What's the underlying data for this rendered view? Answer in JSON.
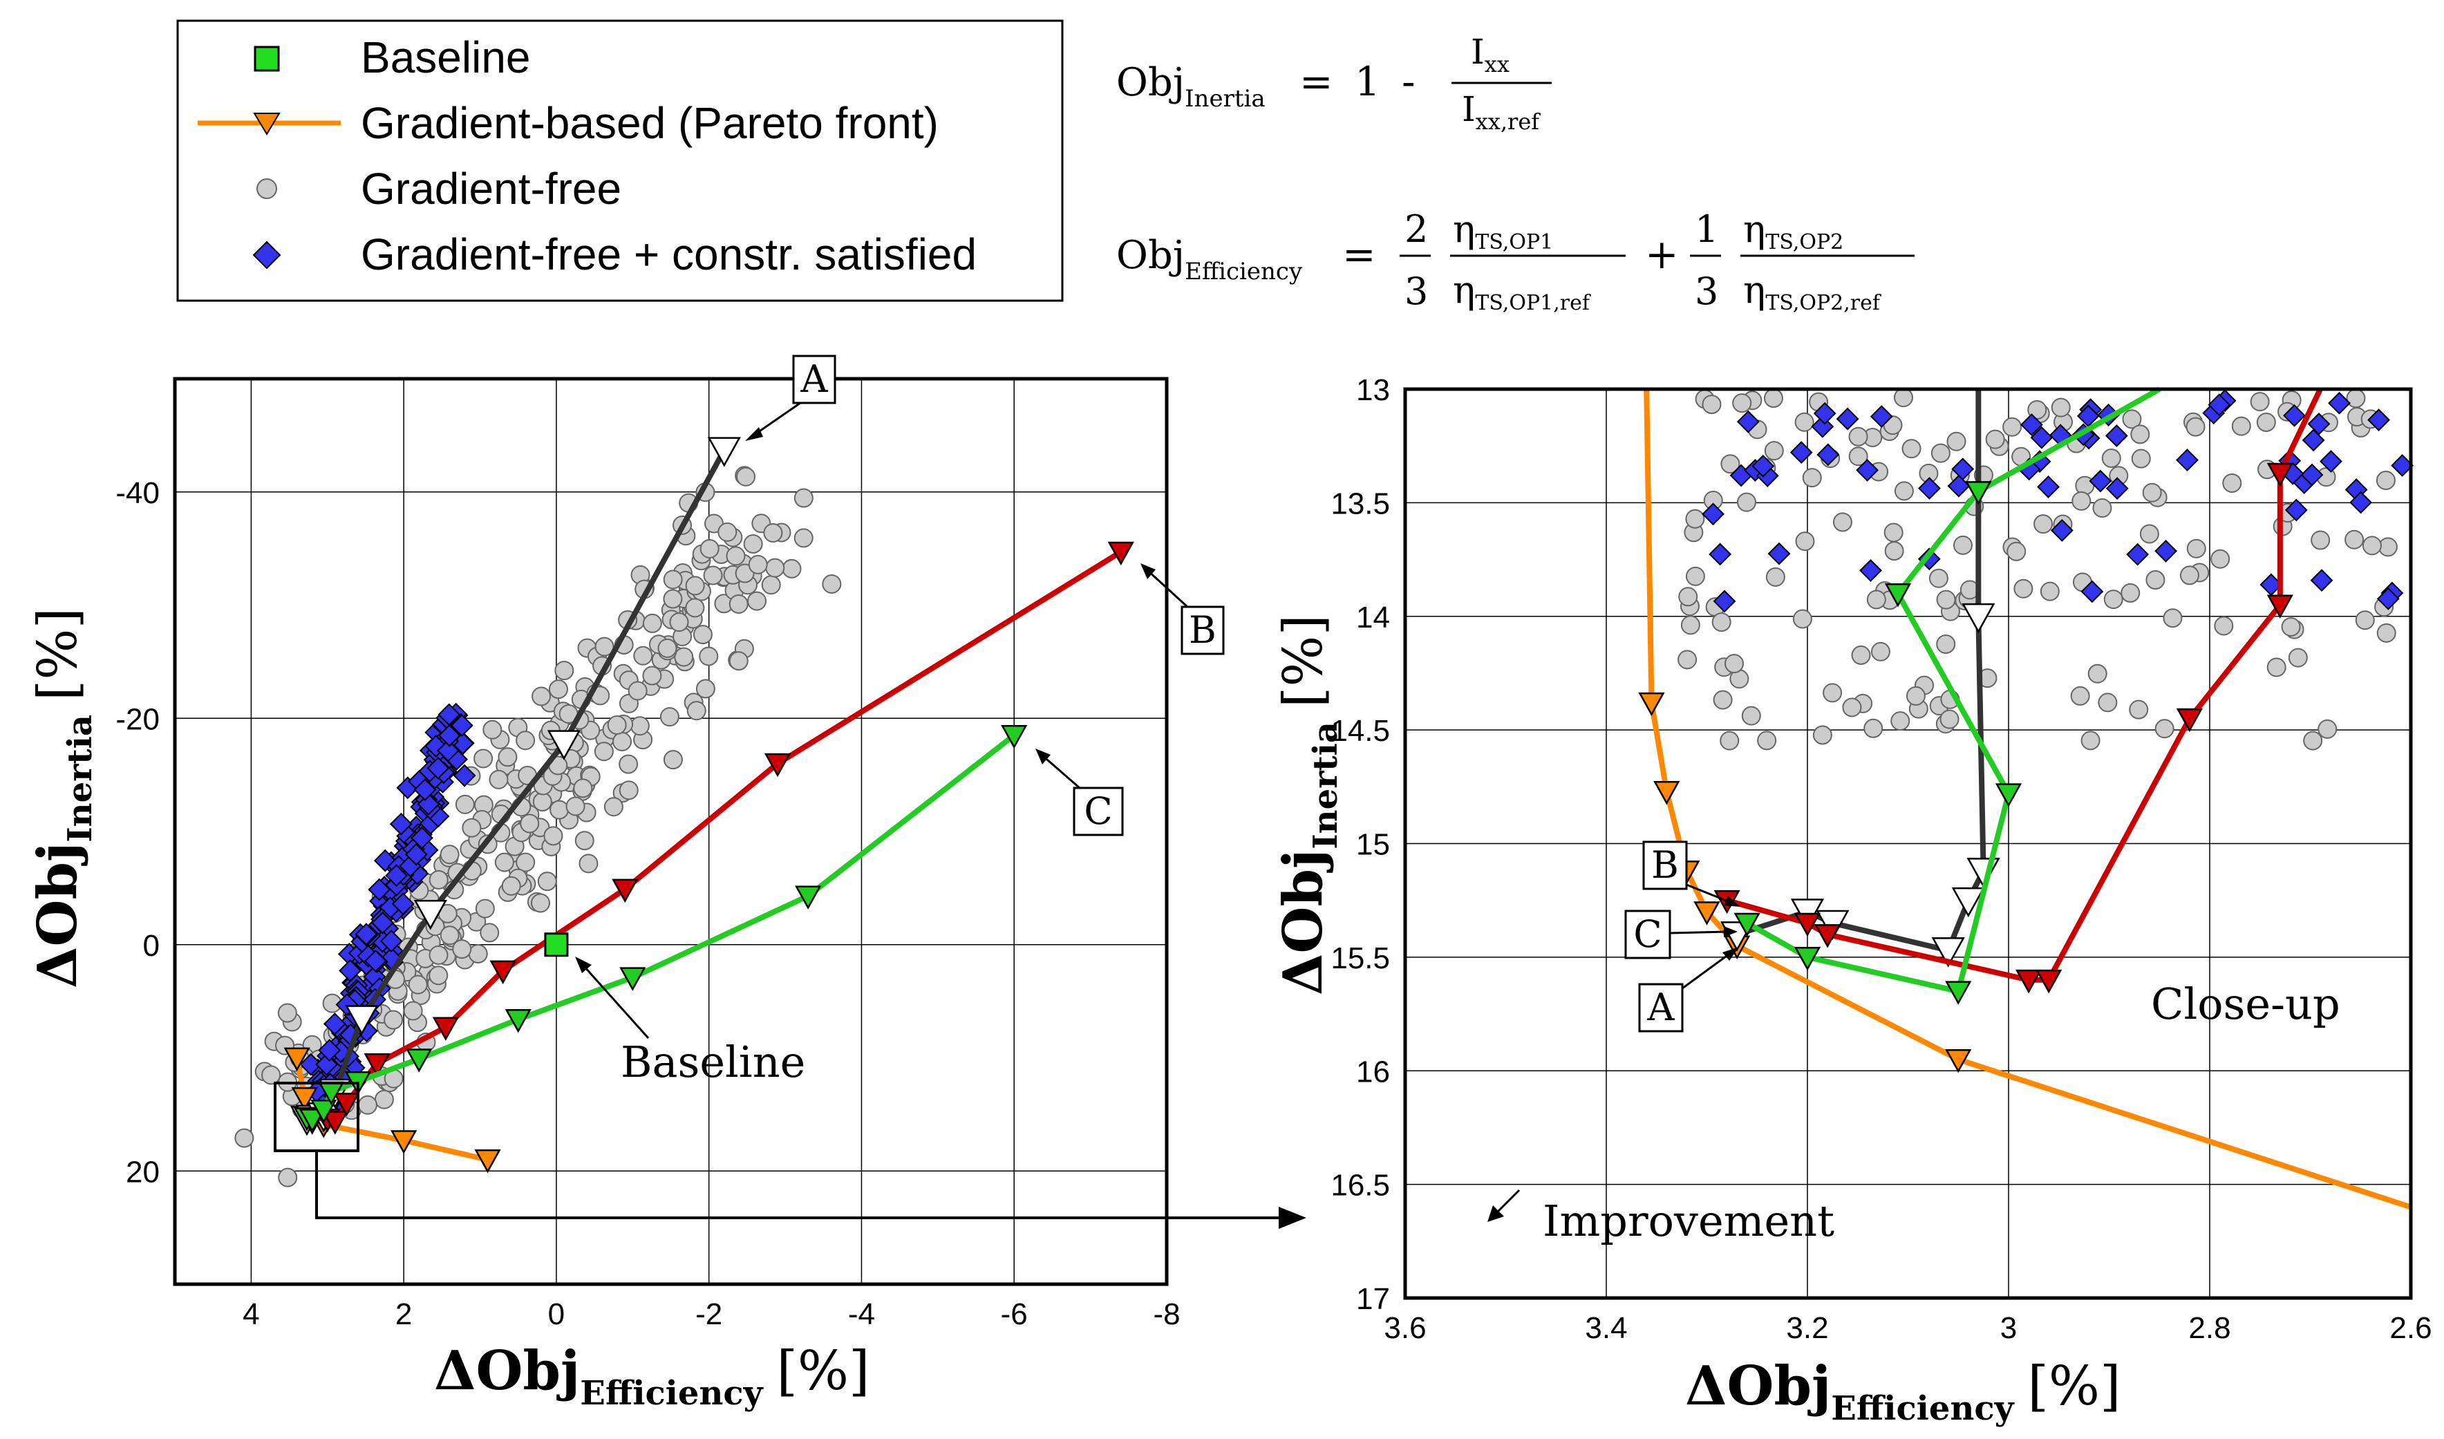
{
  "legend": {
    "items": [
      {
        "label": "Baseline",
        "marker": "square",
        "color": "#22dd22"
      },
      {
        "label": "Gradient-based (Pareto front)",
        "marker": "tri-line",
        "color": "#ff8800"
      },
      {
        "label": "Gradient-free",
        "marker": "circle",
        "color": "#cccccc"
      },
      {
        "label": "Gradient-free + constr. satisfied",
        "marker": "diamond",
        "color": "#3333ee"
      }
    ]
  },
  "equations": {
    "inertia": {
      "lhs": "Obj",
      "lhs_sub": "Inertia",
      "eq": "=",
      "one": "1",
      "minus": "-",
      "num": "I",
      "num_sub": "xx",
      "den": "I",
      "den_sub": "xx,ref"
    },
    "efficiency": {
      "lhs": "Obj",
      "lhs_sub": "Efficiency",
      "eq": "=",
      "plus": "+",
      "c1_num": "2",
      "c1_den": "3",
      "c2_num": "1",
      "c2_den": "3",
      "eta": "η",
      "f1_num_sub": "TS,OP1",
      "f1_den_sub": "TS,OP1,ref",
      "f2_num_sub": "TS,OP2",
      "f2_den_sub": "TS,OP2,ref"
    }
  },
  "colors": {
    "baseline": "#22dd22",
    "orange": "#ff8800",
    "gray": "#cccccc",
    "blue": "#3333ee",
    "red": "#cc0000",
    "green": "#22cc22",
    "dark": "#333333"
  },
  "chart_data": [
    {
      "type": "scatter",
      "name": "overview",
      "xlabel": "ΔObj",
      "xlabel_sub": "Efficiency",
      "xlabel_unit": "[%]",
      "ylabel": "ΔObj",
      "ylabel_sub": "Inertia",
      "ylabel_unit": "[%]",
      "xlim": [
        5,
        -8
      ],
      "ylim": [
        30,
        -50
      ],
      "grid": true,
      "xticks": [
        4,
        2,
        0,
        -2,
        -4,
        -6,
        -8
      ],
      "xtick_labels": [
        "4",
        "2",
        "0",
        "-2",
        "-4",
        "-6",
        "-8"
      ],
      "yticks": [
        -40,
        -20,
        0,
        20
      ],
      "ytick_labels": [
        "-40",
        "-20",
        "0",
        "20"
      ],
      "series": [
        {
          "name": "Gradient-based (Pareto front)",
          "color": "#ff8800",
          "x": [
            3.4,
            3.3,
            3.27,
            3.05,
            2.0,
            0.9
          ],
          "y": [
            10,
            13.5,
            15.3,
            15.9,
            17.3,
            19.0
          ]
        },
        {
          "name": "Path A",
          "color": "#333333",
          "open_markers": true,
          "x": [
            3.27,
            3.2,
            3.05,
            2.9,
            2.55,
            1.65,
            -0.1,
            -2.2
          ],
          "y": [
            15.4,
            15.3,
            15.1,
            13.0,
            6.5,
            -2.8,
            -17.8,
            -43.7
          ]
        },
        {
          "name": "Path B",
          "color": "#cc0000",
          "x": [
            3.27,
            3.0,
            2.9,
            2.75,
            2.35,
            1.45,
            0.7,
            -0.9,
            -2.9,
            -7.4
          ],
          "y": [
            15.25,
            15.4,
            15.6,
            14.0,
            10.5,
            7.3,
            2.3,
            -4.9,
            -16.0,
            -34.7
          ]
        },
        {
          "name": "Path C",
          "color": "#22cc22",
          "x": [
            3.27,
            3.2,
            3.05,
            2.95,
            2.6,
            1.8,
            0.5,
            -1.0,
            -3.3,
            -6.0
          ],
          "y": [
            15.3,
            15.4,
            14.6,
            13.0,
            12.1,
            10.1,
            6.6,
            2.9,
            -4.3,
            -18.5
          ]
        },
        {
          "name": "Baseline",
          "color": "#22dd22",
          "x": [
            0
          ],
          "y": [
            0
          ]
        }
      ],
      "annotations": [
        {
          "text": "A",
          "x": -2.2,
          "y": -43.7
        },
        {
          "text": "B",
          "x": -7.4,
          "y": -34.7
        },
        {
          "text": "C",
          "x": -6.0,
          "y": -18.5
        },
        {
          "text": "Baseline",
          "x": 0,
          "y": 0
        }
      ]
    },
    {
      "type": "scatter",
      "name": "close-up",
      "xlabel": "ΔObj",
      "xlabel_sub": "Efficiency",
      "xlabel_unit": "[%]",
      "ylabel": "ΔObj",
      "ylabel_sub": "Inertia",
      "ylabel_unit": "[%]",
      "xlim": [
        3.6,
        2.6
      ],
      "ylim": [
        17,
        13
      ],
      "grid": true,
      "xticks": [
        3.6,
        3.4,
        3.2,
        3.0,
        2.8,
        2.6
      ],
      "xtick_labels": [
        "3.6",
        "3.4",
        "3.2",
        "3",
        "2.8",
        "2.6"
      ],
      "yticks": [
        13,
        13.5,
        14,
        14.5,
        15,
        15.5,
        16,
        16.5,
        17
      ],
      "ytick_labels": [
        "13",
        "13.5",
        "14",
        "14.5",
        "15",
        "15.5",
        "16",
        "16.5",
        "17"
      ],
      "series": [
        {
          "name": "Gradient-based (Pareto front)",
          "color": "#ff8800",
          "x": [
            3.36,
            3.355,
            3.34,
            3.32,
            3.3,
            3.27,
            3.05,
            2.6
          ],
          "y": [
            13.0,
            14.38,
            14.77,
            15.12,
            15.3,
            15.45,
            15.95,
            16.6
          ]
        },
        {
          "name": "Path A",
          "color": "#333333",
          "open_markers": true,
          "x": [
            3.27,
            3.2,
            3.175,
            3.06,
            3.04,
            3.025,
            3.03,
            3.03
          ],
          "y": [
            15.4,
            15.3,
            15.35,
            15.47,
            15.25,
            15.12,
            14.0,
            13.0
          ]
        },
        {
          "name": "Path B",
          "color": "#cc0000",
          "x": [
            3.28,
            3.2,
            3.18,
            2.98,
            2.96,
            2.82,
            2.73,
            2.73,
            2.69
          ],
          "y": [
            15.25,
            15.35,
            15.4,
            15.6,
            15.6,
            14.45,
            13.95,
            13.37,
            13.0
          ]
        },
        {
          "name": "Path C",
          "color": "#22cc22",
          "x": [
            3.26,
            3.2,
            3.05,
            3.0,
            3.11,
            3.03,
            2.85
          ],
          "y": [
            15.35,
            15.5,
            15.65,
            14.78,
            13.9,
            13.45,
            13.0
          ]
        }
      ],
      "annotations": [
        {
          "text": "A",
          "x": 3.33,
          "y": 15.7
        },
        {
          "text": "B",
          "x": 3.33,
          "y": 15.05
        },
        {
          "text": "C",
          "x": 3.34,
          "y": 15.4
        },
        {
          "text": "Close-up",
          "x": 2.8,
          "y": 15.7
        },
        {
          "text": "Improvement",
          "x": 3.3,
          "y": 16.8
        }
      ]
    }
  ]
}
